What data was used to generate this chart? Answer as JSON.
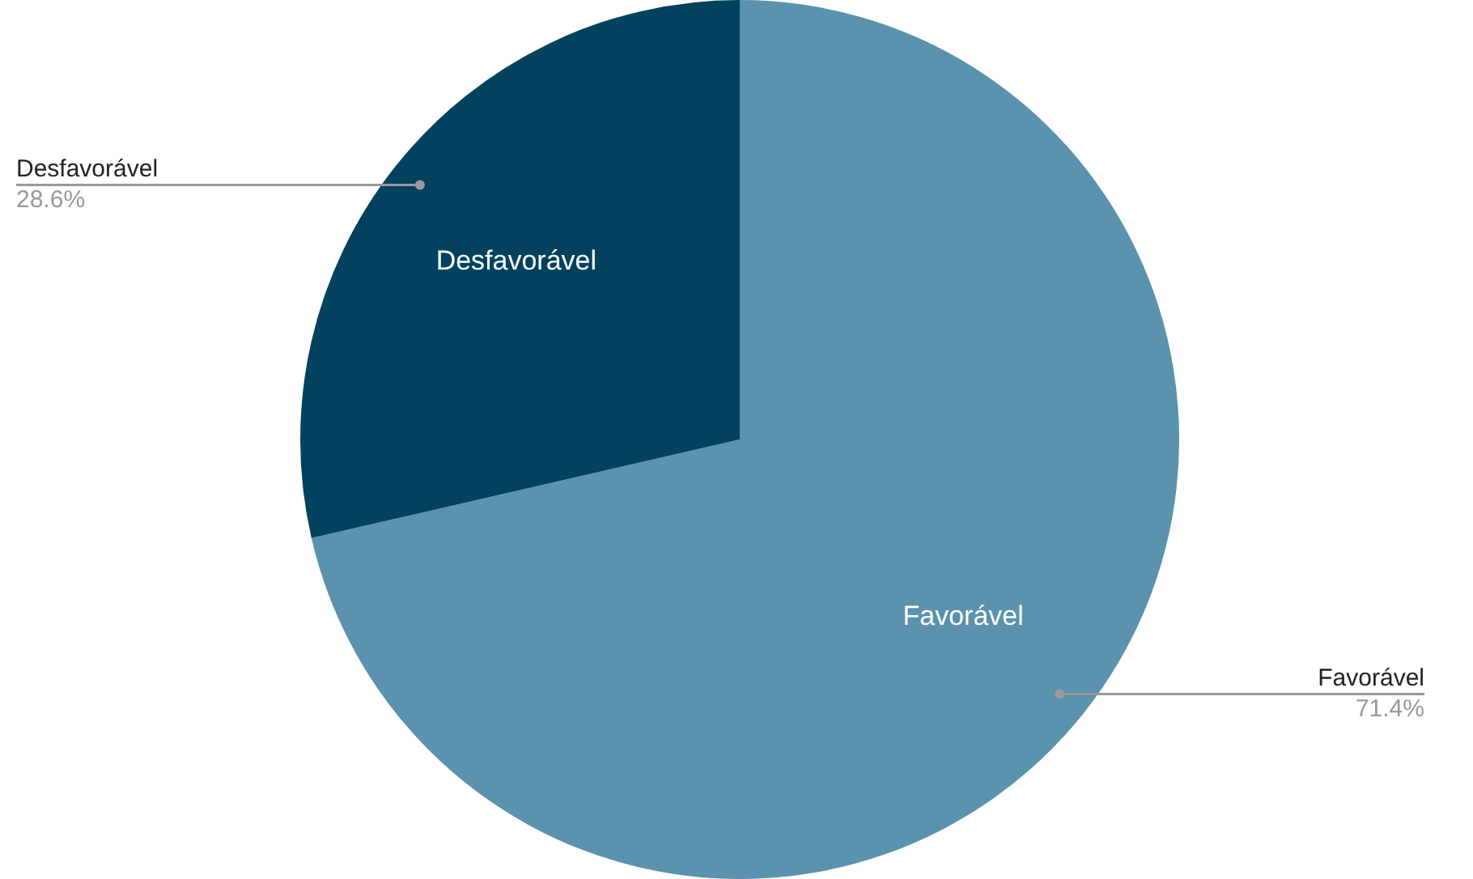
{
  "chart_data": {
    "type": "pie",
    "categories": [
      "Favorável",
      "Desfavorável"
    ],
    "values": [
      71.4,
      28.6
    ],
    "colors": [
      "#5b92ae",
      "#03425e"
    ],
    "value_labels": [
      "71.4%",
      "28.6%"
    ],
    "legend": false
  }
}
